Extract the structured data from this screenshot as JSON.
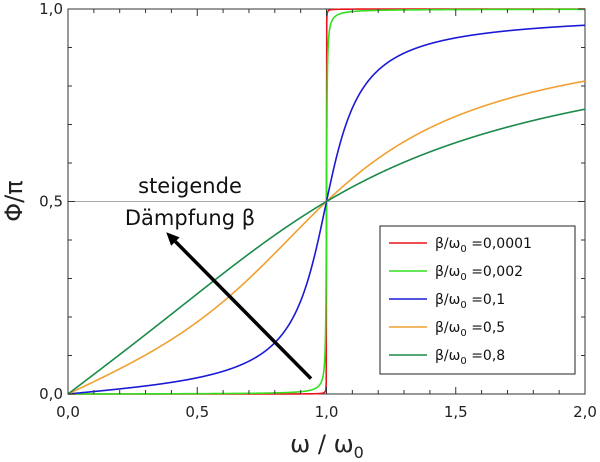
{
  "chart_data": {
    "type": "line",
    "xlabel": "ω / ω",
    "xlabel_sub": "0",
    "ylabel": "Φ/π",
    "xlim": [
      0,
      2
    ],
    "ylim": [
      0,
      1
    ],
    "x_ticks": [
      {
        "value": 0,
        "label": "0,0"
      },
      {
        "value": 0.5,
        "label": "0,5"
      },
      {
        "value": 1,
        "label": "1,0"
      },
      {
        "value": 1.5,
        "label": "1,5"
      },
      {
        "value": 2,
        "label": "2,0"
      }
    ],
    "y_ticks": [
      {
        "value": 0,
        "label": "0,0"
      },
      {
        "value": 0.5,
        "label": "0,5"
      },
      {
        "value": 1,
        "label": "1,0"
      }
    ],
    "reference_lines": {
      "x": 1,
      "y": 0.5
    },
    "grid": false,
    "legend_position": "bottom-right",
    "annotation": {
      "lines": [
        "steigende",
        "Dämpfung β"
      ],
      "arrow_from": [
        0.94,
        0.04
      ],
      "arrow_to": [
        0.38,
        0.42
      ]
    },
    "series": [
      {
        "name_main": "β/ω",
        "name_sub": "0",
        "name_value": " =0,0001",
        "ratio": 0.0001,
        "color": "#e8141c"
      },
      {
        "name_main": "β/ω",
        "name_sub": "0",
        "name_value": " =0,002",
        "ratio": 0.002,
        "color": "#33e01f"
      },
      {
        "name_main": "β/ω",
        "name_sub": "0",
        "name_value": " =0,1",
        "ratio": 0.1,
        "color": "#1a1ad6"
      },
      {
        "name_main": "β/ω",
        "name_sub": "0",
        "name_value": " =0,5",
        "ratio": 0.5,
        "color": "#f0a030"
      },
      {
        "name_main": "β/ω",
        "name_sub": "0",
        "name_value": " =0,8",
        "ratio": 0.8,
        "color": "#1a8a4a"
      }
    ]
  }
}
